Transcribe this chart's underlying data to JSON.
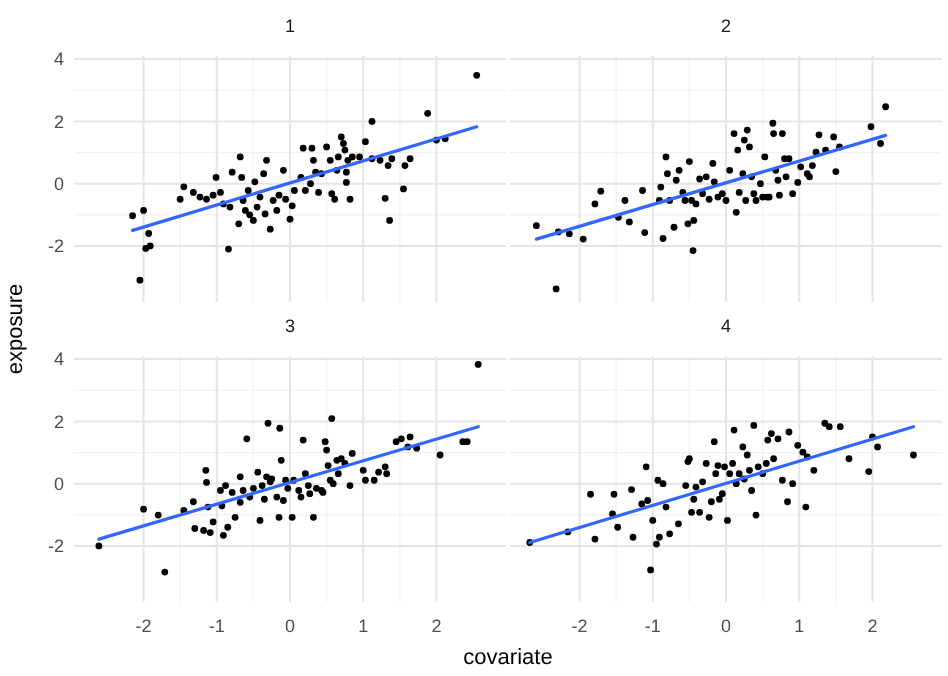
{
  "chart_data": [
    {
      "type": "scatter",
      "title": "1",
      "ylabel": "exposure",
      "xlim": [
        -2.95,
        2.95
      ],
      "ylim": [
        -3.8,
        4.1
      ],
      "xticks": [
        -2,
        -1,
        0,
        1,
        2
      ],
      "yticks": [
        -2,
        0,
        2,
        4
      ],
      "tick_labels": "y",
      "grid": true,
      "series": [
        {
          "marker": "circle",
          "color": "#000000",
          "x": [
            -2.15,
            -2.0,
            -1.93,
            -1.97,
            -1.91,
            -2.05,
            -1.5,
            -1.45,
            -1.32,
            -1.23,
            -1.14,
            -1.05,
            -1.01,
            -0.95,
            -0.91,
            -0.82,
            -0.84,
            -0.79,
            -0.7,
            -0.68,
            -0.66,
            -0.64,
            -0.61,
            -0.57,
            -0.55,
            -0.5,
            -0.48,
            -0.45,
            -0.41,
            -0.36,
            -0.34,
            -0.32,
            -0.27,
            -0.23,
            -0.18,
            -0.15,
            -0.09,
            -0.06,
            0,
            0.03,
            0.06,
            0.15,
            0.18,
            0.21,
            0.28,
            0.3,
            0.32,
            0.35,
            0.39,
            0.43,
            0.5,
            0.55,
            0.57,
            0.61,
            0.64,
            0.66,
            0.7,
            0.73,
            0.75,
            0.77,
            0.77,
            0.79,
            0.82,
            0.85,
            0.95,
            1.03,
            1.12,
            1.12,
            1.23,
            1.3,
            1.34,
            1.36,
            1.39,
            1.55,
            1.57,
            1.64,
            1.88,
            2.0,
            2.12,
            2.55
          ],
          "values": [
            -1.03,
            -0.86,
            -1.6,
            -2.08,
            -2.0,
            -3.1,
            -0.5,
            -0.1,
            -0.28,
            -0.43,
            -0.5,
            -0.37,
            0.2,
            -0.28,
            -0.65,
            -0.75,
            -2.1,
            0.37,
            -1.29,
            0.86,
            0.2,
            -0.54,
            -0.86,
            -0.22,
            -1.0,
            -1.18,
            0.06,
            -0.75,
            -0.43,
            0.32,
            -0.97,
            0.75,
            -1.46,
            -0.54,
            -0.86,
            -0.37,
            0.43,
            -0.5,
            -1.14,
            -0.71,
            -0.22,
            0.2,
            1.14,
            -0.22,
            0,
            1.14,
            0.75,
            0.37,
            -0.28,
            0.32,
            1.18,
            0.75,
            -0.32,
            -0.5,
            0.43,
            0.86,
            1.5,
            1.29,
            1.08,
            0.37,
            0.04,
            0.75,
            -0.5,
            0.86,
            0.86,
            1.35,
            2.0,
            0.8,
            0.75,
            -0.47,
            0.58,
            -1.18,
            0.8,
            -0.17,
            0.58,
            0.8,
            2.26,
            1.4,
            1.44,
            3.48
          ]
        },
        {
          "type": "line",
          "color": "#3366ff",
          "x": [
            -2.15,
            2.55
          ],
          "values": [
            -1.5,
            1.83
          ]
        }
      ]
    },
    {
      "type": "scatter",
      "title": "2",
      "xlim": [
        -2.95,
        2.95
      ],
      "ylim": [
        -3.8,
        4.1
      ],
      "xticks": [
        -2,
        -1,
        0,
        1,
        2
      ],
      "yticks": [
        -2,
        0,
        2,
        4
      ],
      "tick_labels": false,
      "grid": true,
      "series": [
        {
          "marker": "circle",
          "color": "#000000",
          "x": [
            -2.59,
            -2.32,
            -2.29,
            -2.14,
            -1.95,
            -1.79,
            -1.71,
            -1.47,
            -1.38,
            -1.32,
            -1.14,
            -1.11,
            -0.91,
            -0.89,
            -0.86,
            -0.82,
            -0.8,
            -0.77,
            -0.71,
            -0.68,
            -0.64,
            -0.59,
            -0.56,
            -0.52,
            -0.5,
            -0.47,
            -0.45,
            -0.44,
            -0.41,
            -0.36,
            -0.32,
            -0.27,
            -0.23,
            -0.18,
            -0.16,
            -0.11,
            -0.05,
            0,
            0.05,
            0.11,
            0.14,
            0.16,
            0.18,
            0.23,
            0.25,
            0.27,
            0.29,
            0.32,
            0.35,
            0.38,
            0.41,
            0.47,
            0.5,
            0.53,
            0.56,
            0.59,
            0.64,
            0.65,
            0.68,
            0.71,
            0.73,
            0.77,
            0.8,
            0.82,
            0.86,
            0.91,
            0.98,
            1.02,
            1.11,
            1.14,
            1.18,
            1.23,
            1.27,
            1.36,
            1.47,
            1.5,
            1.55,
            1.98,
            2.11,
            2.18
          ],
          "values": [
            -1.35,
            -3.38,
            -1.55,
            -1.61,
            -1.78,
            -0.65,
            -0.24,
            -1.08,
            -0.54,
            -1.23,
            -0.22,
            -1.57,
            -0.54,
            -0.11,
            -1.76,
            0.86,
            0.32,
            -0.54,
            -1.4,
            0.11,
            0.43,
            -0.28,
            -0.54,
            -1.29,
            0.71,
            -0.54,
            -2.15,
            -1.18,
            -0.65,
            0.15,
            -0.32,
            0.22,
            -0.5,
            0.65,
            0.06,
            -0.43,
            -0.32,
            -0.54,
            0.43,
            1.61,
            -0.92,
            1.08,
            -0.28,
            0.32,
            1.4,
            -0.54,
            1.72,
            1.18,
            0.22,
            -0.32,
            -0.54,
            0,
            -0.43,
            0.86,
            -0.43,
            -0.43,
            1.94,
            1.61,
            0.43,
            0.11,
            -0.37,
            1.61,
            0.8,
            0.22,
            0.8,
            -0.32,
            0.04,
            0.54,
            0.32,
            0.22,
            0.58,
            1.01,
            1.57,
            1.08,
            1.5,
            0.39,
            1.18,
            1.83,
            1.29,
            2.47
          ]
        },
        {
          "type": "line",
          "color": "#3366ff",
          "x": [
            -2.59,
            2.18
          ],
          "values": [
            -1.78,
            1.55
          ]
        }
      ]
    },
    {
      "type": "scatter",
      "title": "3",
      "xlabel": "covariate",
      "xlim": [
        -2.95,
        2.95
      ],
      "ylim": [
        -3.8,
        4.1
      ],
      "xticks": [
        -2,
        -1,
        0,
        1,
        2
      ],
      "yticks": [
        -2,
        0,
        2,
        4
      ],
      "grid": true,
      "series": [
        {
          "marker": "circle",
          "color": "#000000",
          "x": [
            -2.61,
            -2.0,
            -1.8,
            -1.71,
            -1.45,
            -1.32,
            -1.3,
            -1.18,
            -1.15,
            -1.14,
            -1.12,
            -1.09,
            -1.05,
            -0.95,
            -0.93,
            -0.91,
            -0.88,
            -0.85,
            -0.79,
            -0.75,
            -0.68,
            -0.68,
            -0.64,
            -0.59,
            -0.55,
            -0.5,
            -0.44,
            -0.41,
            -0.38,
            -0.35,
            -0.32,
            -0.3,
            -0.27,
            -0.25,
            -0.18,
            -0.15,
            -0.14,
            -0.12,
            -0.09,
            -0.06,
            -0.03,
            0.03,
            0.05,
            0.12,
            0.15,
            0.18,
            0.21,
            0.25,
            0.27,
            0.32,
            0.36,
            0.43,
            0.45,
            0.48,
            0.5,
            0.52,
            0.55,
            0.57,
            0.59,
            0.64,
            0.66,
            0.7,
            0.75,
            0.82,
            0.85,
            1.0,
            1.03,
            1.15,
            1.21,
            1.3,
            1.32,
            1.45,
            1.52,
            1.61,
            1.64,
            1.73,
            2.05,
            2.36,
            2.42,
            2.57
          ],
          "values": [
            -2.0,
            -0.82,
            -1.01,
            -2.84,
            -0.86,
            -0.58,
            -1.44,
            -1.5,
            0.43,
            0.04,
            -0.75,
            -1.57,
            -1.23,
            -0.22,
            -0.71,
            -1.66,
            -0.06,
            -1.4,
            -0.28,
            -1.08,
            -0.6,
            0.22,
            -0.22,
            1.44,
            -0.43,
            -0.15,
            0.37,
            -1.18,
            -0.06,
            -0.5,
            0.22,
            1.94,
            0.06,
            0.15,
            -0.43,
            -1.08,
            1.78,
            0.75,
            -0.54,
            0.11,
            -0.15,
            -1.08,
            0.11,
            -0.22,
            -0.43,
            1.4,
            0.32,
            -0.06,
            -0.32,
            -1.08,
            -0.15,
            -0.22,
            -0.28,
            1.35,
            1.08,
            0.58,
            0.11,
            2.09,
            0,
            0.75,
            0.32,
            0.8,
            0.65,
            -0.06,
            0.97,
            0.43,
            0.11,
            0.11,
            0.37,
            0.54,
            0.32,
            1.35,
            1.44,
            1.18,
            1.5,
            1.14,
            0.92,
            1.35,
            1.35,
            3.83
          ]
        },
        {
          "type": "line",
          "color": "#3366ff",
          "x": [
            -2.61,
            2.57
          ],
          "values": [
            -1.78,
            1.83
          ]
        }
      ]
    },
    {
      "type": "scatter",
      "title": "4",
      "xlim": [
        -2.95,
        2.95
      ],
      "ylim": [
        -3.8,
        4.1
      ],
      "xticks": [
        -2,
        -1,
        0,
        1,
        2
      ],
      "yticks": [
        -2,
        0,
        2,
        4
      ],
      "tick_labels": "x",
      "grid": true,
      "series": [
        {
          "marker": "circle",
          "color": "#000000",
          "x": [
            -2.68,
            -2.16,
            -1.85,
            -1.79,
            -1.55,
            -1.53,
            -1.48,
            -1.29,
            -1.27,
            -1.15,
            -1.09,
            -1.07,
            -1.03,
            -1.0,
            -0.95,
            -0.93,
            -0.91,
            -0.86,
            -0.82,
            -0.77,
            -0.65,
            -0.55,
            -0.52,
            -0.5,
            -0.47,
            -0.44,
            -0.41,
            -0.36,
            -0.32,
            -0.27,
            -0.23,
            -0.2,
            -0.16,
            -0.14,
            -0.11,
            -0.09,
            -0.05,
            -0.02,
            0.02,
            0.05,
            0.09,
            0.11,
            0.14,
            0.18,
            0.23,
            0.25,
            0.29,
            0.32,
            0.35,
            0.38,
            0.41,
            0.44,
            0.5,
            0.55,
            0.57,
            0.62,
            0.65,
            0.71,
            0.77,
            0.84,
            0.86,
            0.91,
            0.98,
            1.05,
            1.09,
            1.11,
            1.2,
            1.35,
            1.41,
            1.56,
            1.68,
            1.95,
            2.0,
            2.07,
            2.56
          ],
          "values": [
            -1.89,
            -1.55,
            -0.34,
            -1.78,
            -0.97,
            -0.34,
            -1.4,
            -0.19,
            -1.72,
            -0.65,
            0.54,
            -0.54,
            -2.77,
            -1.18,
            -1.94,
            0.11,
            -1.72,
            0,
            -0.75,
            -1.61,
            -1.29,
            -0.06,
            0.71,
            0.8,
            -0.92,
            -0.5,
            -0.11,
            -0.92,
            0.06,
            0.65,
            -1.08,
            -0.58,
            1.35,
            0.32,
            0.58,
            -0.5,
            -0.32,
            0.54,
            -1.18,
            0.32,
            0.65,
            1.72,
            0,
            0.32,
            1.18,
            0.15,
            0.92,
            0.43,
            -0.22,
            1.87,
            -1.01,
            0.54,
            0.32,
            0.65,
            1.4,
            1.61,
            0.8,
            1.44,
            0.11,
            -0.58,
            1.66,
            0,
            1.23,
            1.01,
            -0.75,
            0.86,
            0.43,
            1.94,
            1.83,
            1.83,
            0.8,
            0.39,
            1.5,
            1.18,
            0.92
          ]
        },
        {
          "type": "line",
          "color": "#3366ff",
          "x": [
            -2.68,
            2.56
          ],
          "values": [
            -1.89,
            1.83
          ]
        }
      ]
    }
  ]
}
